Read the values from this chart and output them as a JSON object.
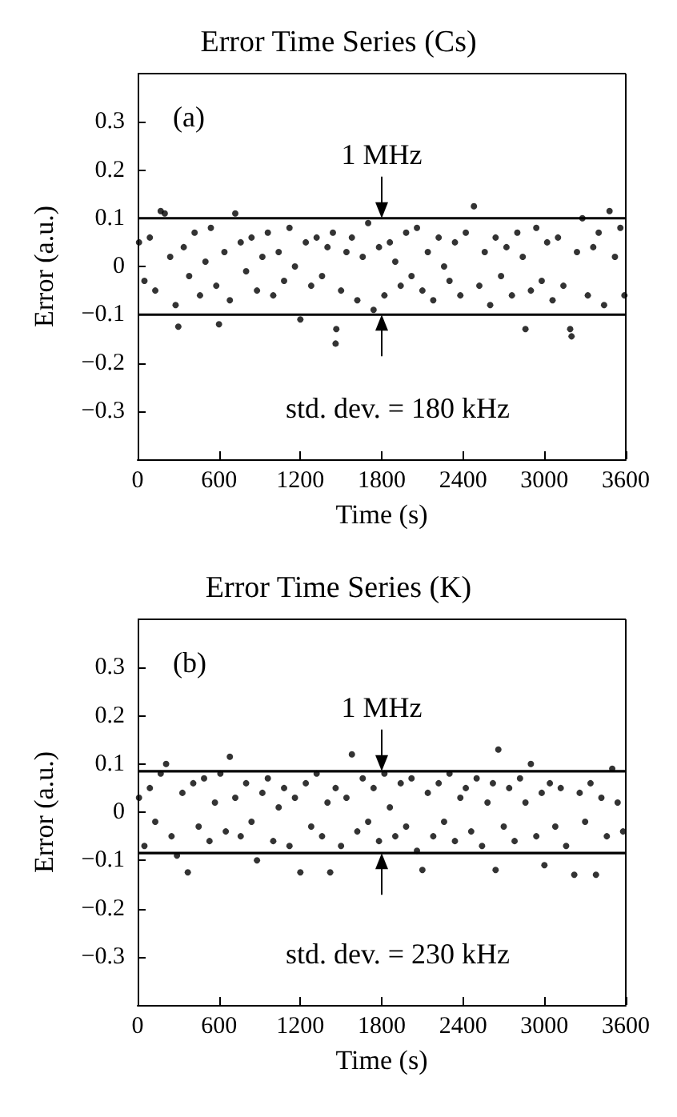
{
  "chart_data": [
    {
      "type": "scatter",
      "title": "Error Time Series (Cs)",
      "xlabel": "Time (s)",
      "ylabel": "Error (a.u.)",
      "xlim": [
        0,
        3600
      ],
      "xticks": [
        0,
        600,
        1200,
        1800,
        2400,
        3000,
        3600
      ],
      "ylim": [
        -0.4,
        0.4
      ],
      "yticks": [
        -0.3,
        -0.2,
        -0.1,
        0,
        0.1,
        0.2,
        0.3
      ],
      "grid": false,
      "marker": "circle",
      "series": [
        {
          "color": "#000000",
          "x": [
            10,
            50,
            90,
            130,
            170,
            200,
            240,
            280,
            300,
            340,
            380,
            420,
            460,
            500,
            540,
            580,
            600,
            640,
            680,
            720,
            760,
            800,
            840,
            880,
            920,
            960,
            1000,
            1040,
            1080,
            1120,
            1160,
            1200,
            1240,
            1280,
            1320,
            1360,
            1400,
            1440,
            1460,
            1465,
            1500,
            1540,
            1580,
            1620,
            1660,
            1700,
            1740,
            1780,
            1820,
            1860,
            1900,
            1940,
            1980,
            2020,
            2060,
            2100,
            2140,
            2180,
            2220,
            2260,
            2300,
            2340,
            2380,
            2420,
            2480,
            2520,
            2560,
            2600,
            2640,
            2680,
            2720,
            2760,
            2800,
            2840,
            2860,
            2900,
            2940,
            2980,
            3020,
            3060,
            3100,
            3140,
            3190,
            3200,
            3240,
            3280,
            3320,
            3360,
            3400,
            3440,
            3480,
            3520,
            3560,
            3590
          ],
          "values": [
            0.05,
            -0.03,
            0.06,
            -0.05,
            0.115,
            0.11,
            0.02,
            -0.08,
            -0.125,
            0.04,
            -0.02,
            0.07,
            -0.06,
            0.01,
            0.08,
            -0.04,
            -0.12,
            0.03,
            -0.07,
            0.11,
            0.05,
            -0.01,
            0.06,
            -0.05,
            0.02,
            0.07,
            -0.06,
            0.03,
            -0.03,
            0.08,
            0.0,
            -0.11,
            0.05,
            -0.04,
            0.06,
            -0.02,
            0.04,
            0.07,
            -0.16,
            -0.13,
            -0.05,
            0.03,
            0.06,
            -0.07,
            0.02,
            0.09,
            -0.09,
            0.04,
            -0.06,
            0.05,
            0.01,
            -0.04,
            0.07,
            -0.02,
            0.08,
            -0.05,
            0.03,
            -0.07,
            0.06,
            0.0,
            -0.03,
            0.05,
            -0.06,
            0.07,
            0.125,
            -0.04,
            0.03,
            -0.08,
            0.06,
            -0.02,
            0.04,
            -0.06,
            0.07,
            0.02,
            -0.13,
            -0.05,
            0.08,
            -0.03,
            0.05,
            -0.07,
            0.06,
            -0.04,
            -0.13,
            -0.145,
            0.03,
            0.1,
            -0.06,
            0.04,
            0.07,
            -0.08,
            0.115,
            0.02,
            0.08,
            -0.06
          ]
        }
      ],
      "ref_lines": [
        {
          "axis": "y",
          "value": 0.1,
          "color": "#000000"
        },
        {
          "axis": "y",
          "value": -0.1,
          "color": "#000000"
        }
      ],
      "annotations": [
        "(a)",
        {
          "text": "1 MHz",
          "x": 1800,
          "y": 0.1
        },
        "std. dev. = 180 kHz"
      ]
    },
    {
      "type": "scatter",
      "title": "Error Time Series (K)",
      "xlabel": "Time (s)",
      "ylabel": "Error (a.u.)",
      "xlim": [
        0,
        3600
      ],
      "xticks": [
        0,
        600,
        1200,
        1800,
        2400,
        3000,
        3600
      ],
      "ylim": [
        -0.4,
        0.4
      ],
      "yticks": [
        -0.3,
        -0.2,
        -0.1,
        0,
        0.1,
        0.2,
        0.3
      ],
      "grid": false,
      "marker": "circle",
      "series": [
        {
          "color": "#000000",
          "x": [
            10,
            50,
            90,
            130,
            170,
            210,
            250,
            290,
            330,
            370,
            410,
            450,
            490,
            530,
            570,
            610,
            650,
            680,
            720,
            760,
            800,
            840,
            880,
            920,
            960,
            1000,
            1040,
            1080,
            1120,
            1160,
            1200,
            1240,
            1280,
            1320,
            1360,
            1400,
            1420,
            1460,
            1500,
            1540,
            1580,
            1620,
            1660,
            1700,
            1740,
            1780,
            1820,
            1860,
            1900,
            1940,
            1980,
            2020,
            2060,
            2100,
            2140,
            2180,
            2220,
            2260,
            2300,
            2340,
            2380,
            2420,
            2460,
            2500,
            2540,
            2580,
            2620,
            2640,
            2660,
            2700,
            2740,
            2780,
            2820,
            2860,
            2900,
            2940,
            2980,
            3000,
            3040,
            3080,
            3120,
            3160,
            3220,
            3260,
            3300,
            3340,
            3380,
            3420,
            3460,
            3500,
            3540,
            3580
          ],
          "values": [
            0.03,
            -0.07,
            0.05,
            -0.02,
            0.08,
            0.1,
            -0.05,
            -0.09,
            0.04,
            -0.125,
            0.06,
            -0.03,
            0.07,
            -0.06,
            0.02,
            0.08,
            -0.04,
            0.115,
            0.03,
            -0.05,
            0.06,
            -0.02,
            -0.1,
            0.04,
            0.07,
            -0.06,
            0.01,
            0.05,
            -0.07,
            0.03,
            -0.125,
            0.06,
            -0.03,
            0.08,
            -0.05,
            0.02,
            -0.125,
            0.05,
            -0.07,
            0.03,
            0.12,
            -0.04,
            0.07,
            -0.02,
            0.05,
            -0.06,
            0.08,
            0.01,
            -0.05,
            0.06,
            -0.03,
            0.07,
            -0.08,
            -0.12,
            0.04,
            -0.05,
            0.06,
            -0.02,
            0.08,
            -0.06,
            0.03,
            0.05,
            -0.04,
            0.07,
            -0.07,
            0.02,
            0.06,
            -0.12,
            0.13,
            -0.03,
            0.05,
            -0.06,
            0.07,
            0.02,
            0.1,
            -0.05,
            0.04,
            -0.11,
            0.06,
            -0.03,
            0.05,
            -0.07,
            -0.13,
            0.04,
            -0.02,
            0.06,
            -0.13,
            0.03,
            -0.05,
            0.09,
            0.02,
            -0.04
          ]
        }
      ],
      "ref_lines": [
        {
          "axis": "y",
          "value": 0.085,
          "color": "#000000"
        },
        {
          "axis": "y",
          "value": -0.085,
          "color": "#000000"
        }
      ],
      "annotations": [
        "(b)",
        {
          "text": "1 MHz",
          "x": 1800,
          "y": 0.085
        },
        "std. dev. = 230 kHz"
      ]
    }
  ]
}
